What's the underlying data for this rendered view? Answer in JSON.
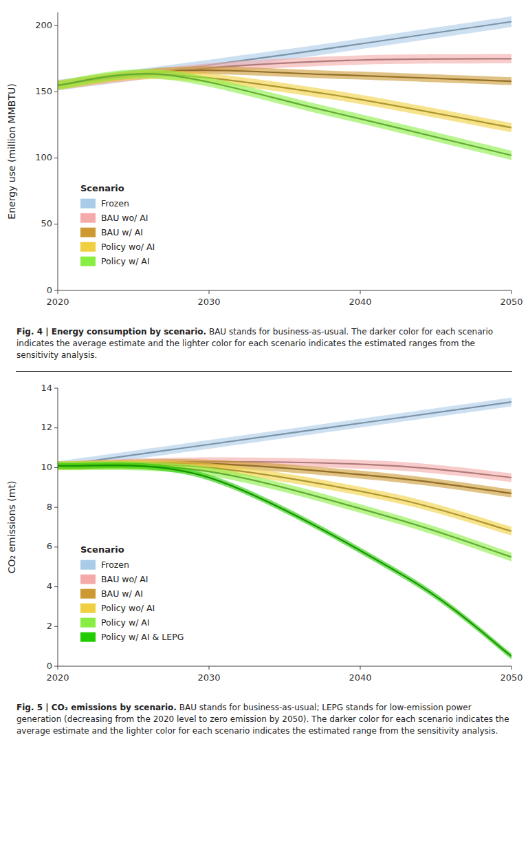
{
  "chart_data": [
    {
      "type": "line",
      "ylabel": "Energy use (million MMBTU)",
      "xlim": [
        2020,
        2050
      ],
      "ylim": [
        0,
        210
      ],
      "xticks": [
        2020,
        2030,
        2040,
        2050
      ],
      "yticks": [
        0,
        50,
        100,
        150,
        200
      ],
      "grid": false,
      "legend": "lower left",
      "legend_title": "Scenario",
      "caption_title": "Fig. 4 | Energy consumption by scenario.",
      "caption": " BAU stands for business-as-usual. The darker color for each scenario indicates the average estimate and the lighter color for each scenario indicates the estimated ranges from the sensitivity analysis.",
      "series": [
        {
          "name": "Frozen",
          "color": "#aacce8",
          "x": [
            2020,
            2035,
            2050
          ],
          "values": [
            155,
            178,
            203
          ],
          "band": 4.0
        },
        {
          "name": "BAU wo/ AI",
          "color": "#f5aaaa",
          "x": [
            2020,
            2030,
            2040,
            2050
          ],
          "values": [
            155,
            168,
            174,
            175
          ],
          "band": 3.5
        },
        {
          "name": "BAU w/ AI",
          "color": "#cc9933",
          "x": [
            2020,
            2028,
            2038,
            2050
          ],
          "values": [
            155,
            166,
            163,
            158
          ],
          "band": 3.0
        },
        {
          "name": "Policy wo/ AI",
          "color": "#f0d040",
          "x": [
            2020,
            2027,
            2038,
            2050
          ],
          "values": [
            155,
            163,
            148,
            123
          ],
          "band": 3.5
        },
        {
          "name": "Policy w/ AI",
          "color": "#88ee44",
          "x": [
            2020,
            2027,
            2038,
            2050
          ],
          "values": [
            155,
            163,
            135,
            102
          ],
          "band": 3.5
        }
      ]
    },
    {
      "type": "line",
      "ylabel": "CO₂ emissions (mt)",
      "xlim": [
        2020,
        2050
      ],
      "ylim": [
        0,
        14
      ],
      "xticks": [
        2020,
        2030,
        2040,
        2050
      ],
      "yticks": [
        0,
        2,
        4,
        6,
        8,
        10,
        12,
        14
      ],
      "grid": false,
      "legend": "lower left",
      "legend_title": "Scenario",
      "caption_title": "Fig. 5 | CO₂ emissions by scenario.",
      "caption": " BAU stands for business-as-usual; LEPG stands for low-emission power generation (decreasing from the 2020 level to zero emission by 2050). The darker color for each scenario indicates the average estimate and the lighter color for each scenario indicates the estimated range from the sensitivity analysis.",
      "series": [
        {
          "name": "Frozen",
          "color": "#aacce8",
          "x": [
            2020,
            2035,
            2050
          ],
          "values": [
            10.1,
            11.7,
            13.3
          ],
          "band": 0.22
        },
        {
          "name": "BAU wo/ AI",
          "color": "#f5aaaa",
          "x": [
            2020,
            2030,
            2042,
            2050
          ],
          "values": [
            10.1,
            10.3,
            10.1,
            9.5
          ],
          "band": 0.22
        },
        {
          "name": "BAU w/ AI",
          "color": "#cc9933",
          "x": [
            2020,
            2030,
            2042,
            2050
          ],
          "values": [
            10.1,
            10.2,
            9.5,
            8.7
          ],
          "band": 0.2
        },
        {
          "name": "Policy wo/ AI",
          "color": "#f0d040",
          "x": [
            2020,
            2030,
            2042,
            2050
          ],
          "values": [
            10.1,
            10.0,
            8.5,
            6.8
          ],
          "band": 0.22
        },
        {
          "name": "Policy w/ AI",
          "color": "#88ee44",
          "x": [
            2020,
            2030,
            2042,
            2050
          ],
          "values": [
            10.1,
            9.8,
            7.5,
            5.5
          ],
          "band": 0.22
        },
        {
          "name": "Policy w/ AI & LEPG",
          "color": "#22cc00",
          "x": [
            2020,
            2030,
            2043,
            2050
          ],
          "values": [
            10.1,
            9.5,
            4.5,
            0.5
          ],
          "band": 0.15
        }
      ]
    }
  ]
}
